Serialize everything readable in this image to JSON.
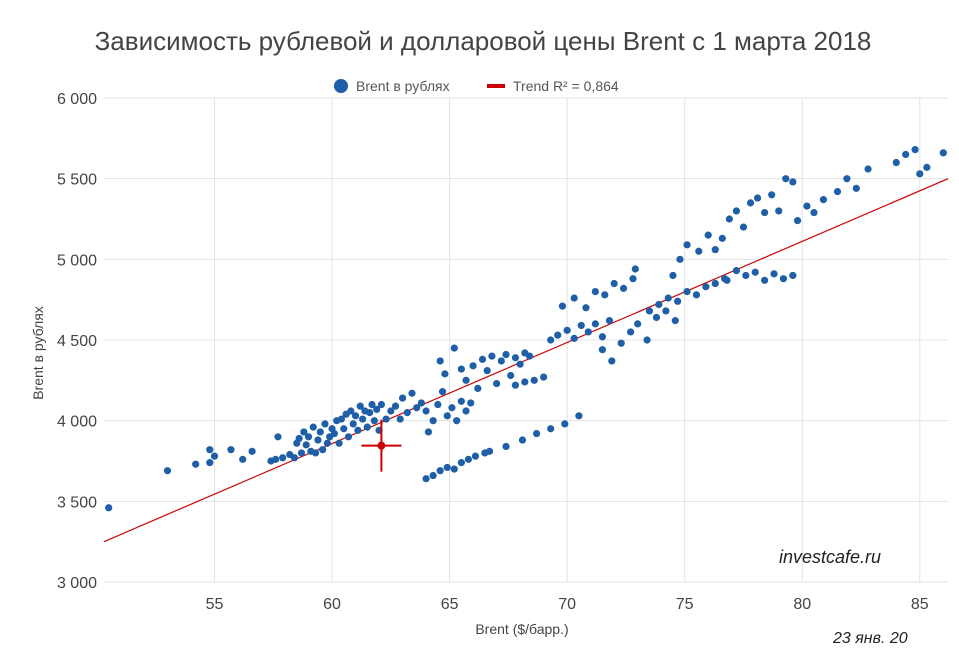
{
  "chart_data": {
    "type": "scatter",
    "title": "Зависимость рублевой и долларовой цены Brent с 1 марта 2018",
    "xlabel": "Brent ($/барр.)",
    "ylabel": "Brent в рублях",
    "xlim": [
      50.3,
      86.2
    ],
    "ylim": [
      3000,
      6000
    ],
    "x_ticks": [
      55,
      60,
      65,
      70,
      75,
      80,
      85
    ],
    "x_tick_labels": [
      "55",
      "60",
      "65",
      "70",
      "75",
      "80",
      "85"
    ],
    "y_ticks": [
      3000,
      3500,
      4000,
      4500,
      5000,
      5500,
      6000
    ],
    "y_tick_labels": [
      "3 000",
      "3 500",
      "4 000",
      "4 500",
      "5 000",
      "5 500",
      "6 000"
    ],
    "grid": true,
    "legend_position": "top-center",
    "series": [
      {
        "name": "Brent в рублях",
        "color": "#1f5fa8",
        "points": [
          [
            50.5,
            3460
          ],
          [
            53.0,
            3690
          ],
          [
            54.2,
            3730
          ],
          [
            54.8,
            3740
          ],
          [
            54.8,
            3820
          ],
          [
            55.0,
            3780
          ],
          [
            55.7,
            3820
          ],
          [
            56.2,
            3760
          ],
          [
            56.6,
            3810
          ],
          [
            57.4,
            3750
          ],
          [
            57.6,
            3760
          ],
          [
            57.7,
            3900
          ],
          [
            57.9,
            3770
          ],
          [
            58.2,
            3790
          ],
          [
            58.4,
            3770
          ],
          [
            58.5,
            3860
          ],
          [
            58.6,
            3890
          ],
          [
            58.7,
            3800
          ],
          [
            58.8,
            3930
          ],
          [
            58.9,
            3850
          ],
          [
            59.0,
            3900
          ],
          [
            59.1,
            3810
          ],
          [
            59.2,
            3960
          ],
          [
            59.3,
            3800
          ],
          [
            59.4,
            3880
          ],
          [
            59.5,
            3930
          ],
          [
            59.6,
            3820
          ],
          [
            59.7,
            3980
          ],
          [
            59.8,
            3860
          ],
          [
            59.9,
            3900
          ],
          [
            60.0,
            3950
          ],
          [
            60.1,
            3920
          ],
          [
            60.2,
            4000
          ],
          [
            60.3,
            3860
          ],
          [
            60.4,
            4010
          ],
          [
            60.5,
            3950
          ],
          [
            60.6,
            4040
          ],
          [
            60.7,
            3900
          ],
          [
            60.8,
            4060
          ],
          [
            60.9,
            3980
          ],
          [
            61.0,
            4030
          ],
          [
            61.1,
            3940
          ],
          [
            61.2,
            4090
          ],
          [
            61.3,
            4010
          ],
          [
            61.4,
            4060
          ],
          [
            61.5,
            3960
          ],
          [
            61.6,
            4050
          ],
          [
            61.7,
            4100
          ],
          [
            61.8,
            4000
          ],
          [
            61.9,
            4070
          ],
          [
            62.0,
            3940
          ],
          [
            62.1,
            4100
          ],
          [
            62.3,
            4010
          ],
          [
            62.5,
            4060
          ],
          [
            62.7,
            4090
          ],
          [
            62.9,
            4010
          ],
          [
            63.0,
            4140
          ],
          [
            63.2,
            4050
          ],
          [
            63.4,
            4170
          ],
          [
            63.6,
            4080
          ],
          [
            63.8,
            4110
          ],
          [
            64.0,
            4060
          ],
          [
            64.1,
            3930
          ],
          [
            64.3,
            4000
          ],
          [
            64.5,
            4100
          ],
          [
            64.7,
            4180
          ],
          [
            64.9,
            4030
          ],
          [
            65.1,
            4080
          ],
          [
            65.3,
            4000
          ],
          [
            65.5,
            4120
          ],
          [
            65.7,
            4060
          ],
          [
            65.9,
            4110
          ],
          [
            64.0,
            3640
          ],
          [
            64.3,
            3660
          ],
          [
            64.6,
            3690
          ],
          [
            64.9,
            3710
          ],
          [
            65.2,
            3700
          ],
          [
            65.5,
            3740
          ],
          [
            65.8,
            3760
          ],
          [
            66.1,
            3780
          ],
          [
            66.5,
            3800
          ],
          [
            64.6,
            4370
          ],
          [
            64.8,
            4290
          ],
          [
            65.2,
            4450
          ],
          [
            65.5,
            4320
          ],
          [
            65.7,
            4250
          ],
          [
            66.0,
            4340
          ],
          [
            66.2,
            4200
          ],
          [
            66.4,
            4380
          ],
          [
            66.6,
            4310
          ],
          [
            66.8,
            4400
          ],
          [
            67.0,
            4230
          ],
          [
            67.2,
            4370
          ],
          [
            67.4,
            4410
          ],
          [
            67.6,
            4280
          ],
          [
            67.8,
            4390
          ],
          [
            68.0,
            4350
          ],
          [
            68.2,
            4420
          ],
          [
            68.4,
            4400
          ],
          [
            66.7,
            3810
          ],
          [
            67.4,
            3840
          ],
          [
            68.1,
            3880
          ],
          [
            68.7,
            3920
          ],
          [
            69.3,
            3950
          ],
          [
            69.9,
            3980
          ],
          [
            70.5,
            4030
          ],
          [
            67.8,
            4220
          ],
          [
            68.2,
            4240
          ],
          [
            68.6,
            4250
          ],
          [
            69.0,
            4270
          ],
          [
            69.3,
            4500
          ],
          [
            69.6,
            4530
          ],
          [
            70.0,
            4560
          ],
          [
            70.3,
            4510
          ],
          [
            70.6,
            4590
          ],
          [
            70.9,
            4550
          ],
          [
            71.2,
            4600
          ],
          [
            71.5,
            4520
          ],
          [
            71.8,
            4620
          ],
          [
            69.8,
            4710
          ],
          [
            70.3,
            4760
          ],
          [
            70.8,
            4700
          ],
          [
            71.2,
            4800
          ],
          [
            71.6,
            4780
          ],
          [
            72.0,
            4850
          ],
          [
            72.4,
            4820
          ],
          [
            72.8,
            4880
          ],
          [
            72.9,
            4940
          ],
          [
            71.5,
            4440
          ],
          [
            71.9,
            4370
          ],
          [
            72.3,
            4480
          ],
          [
            72.7,
            4550
          ],
          [
            73.0,
            4600
          ],
          [
            73.4,
            4500
          ],
          [
            73.8,
            4640
          ],
          [
            74.2,
            4680
          ],
          [
            74.6,
            4620
          ],
          [
            73.5,
            4680
          ],
          [
            73.9,
            4720
          ],
          [
            74.3,
            4760
          ],
          [
            74.7,
            4740
          ],
          [
            75.1,
            4800
          ],
          [
            75.5,
            4780
          ],
          [
            75.9,
            4830
          ],
          [
            76.3,
            4850
          ],
          [
            76.7,
            4880
          ],
          [
            74.5,
            4900
          ],
          [
            74.8,
            5000
          ],
          [
            75.1,
            5090
          ],
          [
            75.6,
            5050
          ],
          [
            76.0,
            5150
          ],
          [
            76.3,
            5060
          ],
          [
            76.6,
            5130
          ],
          [
            76.9,
            5250
          ],
          [
            77.2,
            5300
          ],
          [
            77.5,
            5200
          ],
          [
            77.8,
            5350
          ],
          [
            78.1,
            5380
          ],
          [
            78.4,
            5290
          ],
          [
            78.7,
            5400
          ],
          [
            79.0,
            5300
          ],
          [
            79.3,
            5500
          ],
          [
            79.6,
            5480
          ],
          [
            76.8,
            4870
          ],
          [
            77.2,
            4930
          ],
          [
            77.6,
            4900
          ],
          [
            78.0,
            4920
          ],
          [
            78.4,
            4870
          ],
          [
            78.8,
            4910
          ],
          [
            79.2,
            4880
          ],
          [
            79.6,
            4900
          ],
          [
            79.8,
            5240
          ],
          [
            80.2,
            5330
          ],
          [
            80.5,
            5290
          ],
          [
            80.9,
            5370
          ],
          [
            81.5,
            5420
          ],
          [
            81.9,
            5500
          ],
          [
            82.3,
            5440
          ],
          [
            82.8,
            5560
          ],
          [
            84.0,
            5600
          ],
          [
            84.4,
            5650
          ],
          [
            84.8,
            5680
          ],
          [
            85.0,
            5530
          ],
          [
            85.3,
            5570
          ],
          [
            86.0,
            5660
          ]
        ]
      },
      {
        "name": "Trend R² = 0,864",
        "color": "#cc0000",
        "x": [
          50.3,
          86.2
        ],
        "y": [
          3250,
          5500
        ]
      }
    ],
    "highlight_point": {
      "x": 62.1,
      "y": 3845,
      "color": "#cc0000"
    }
  },
  "watermark": "investcafe.ru",
  "date_note": "23 янв. 20"
}
